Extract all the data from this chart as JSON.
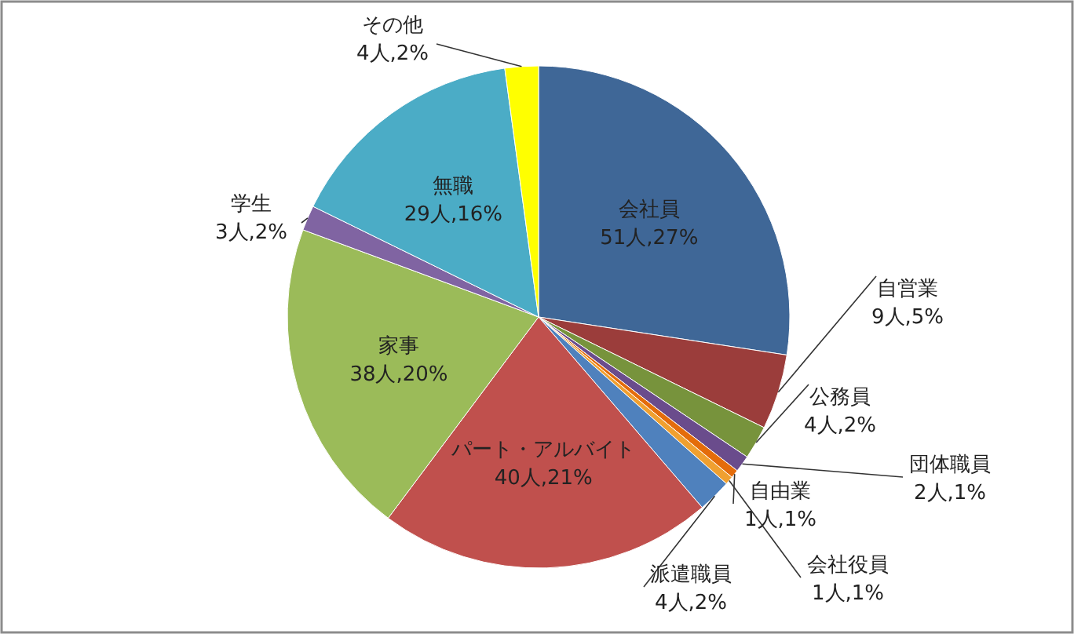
{
  "chart_data": {
    "type": "pie",
    "categories": [
      "会社員",
      "自営業",
      "公務員",
      "団体職員",
      "自由業",
      "会社役員",
      "派遣職員",
      "パート・アルバイト",
      "家事",
      "学生",
      "無職",
      "その他"
    ],
    "values": [
      51,
      9,
      4,
      2,
      1,
      1,
      4,
      40,
      38,
      3,
      29,
      4
    ],
    "value_labels": [
      "51人,27%",
      "9人,5%",
      "4人,2%",
      "2人,1%",
      "1人,1%",
      "1人,1%",
      "4人,2%",
      "40人,21%",
      "38人,20%",
      "3人,2%",
      "29人,16%",
      "4人,2%"
    ],
    "colors": [
      "#3f6797",
      "#9b3d3b",
      "#77933c",
      "#6a4c8c",
      "#e46c0a",
      "#f0a030",
      "#4f81bd",
      "#c0504d",
      "#9bbb59",
      "#8064a2",
      "#4bacc6",
      "#ffff00"
    ]
  }
}
